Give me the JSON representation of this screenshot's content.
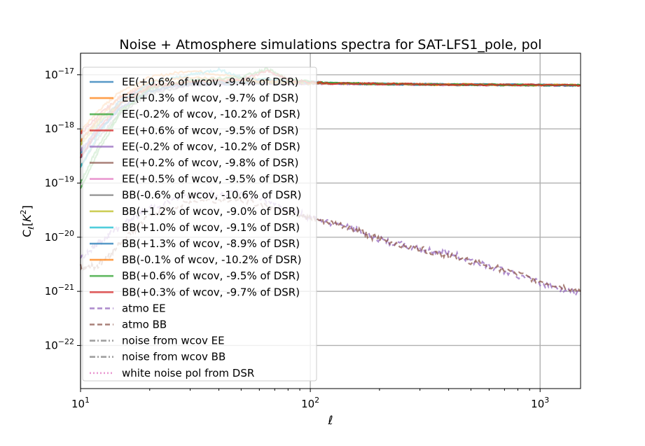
{
  "chart_data": {
    "type": "line",
    "title": "Noise + Atmosphere simulations spectra for SAT-LFS1_pole, pol",
    "xlabel": "ℓ",
    "ylabel": "C_ℓ[K^2]",
    "xscale": "log",
    "yscale": "log",
    "xlim": [
      10,
      1500
    ],
    "ylim": [
      1.6e-23,
      2.5e-17
    ],
    "grid": true,
    "legend_position": "left, inside plot",
    "x_ticks": [
      {
        "value": 10,
        "base": "10",
        "exp": "1"
      },
      {
        "value": 100,
        "base": "10",
        "exp": "2"
      },
      {
        "value": 1000,
        "base": "10",
        "exp": "3"
      }
    ],
    "y_ticks": [
      {
        "value": 1e-22,
        "base": "10",
        "exp": "−22"
      },
      {
        "value": 1e-21,
        "base": "10",
        "exp": "−21"
      },
      {
        "value": 1e-20,
        "base": "10",
        "exp": "−20"
      },
      {
        "value": 1e-19,
        "base": "10",
        "exp": "−19"
      },
      {
        "value": 1e-18,
        "base": "10",
        "exp": "−18"
      },
      {
        "value": 1e-17,
        "base": "10",
        "exp": "−17"
      }
    ],
    "series": [
      {
        "name": "EE(+0.6% of wcov, -9.4% of DSR)",
        "color": "#1f77b4",
        "style": "solid",
        "x": [
          10,
          12,
          15,
          20,
          30,
          50,
          80,
          120,
          200,
          400,
          800,
          1500
        ],
        "y": [
          3.5e-19,
          1.2e-18,
          3.5e-18,
          6e-18,
          6.5e-18,
          7e-18,
          7e-18,
          7e-18,
          6.8e-18,
          6.6e-18,
          6.5e-18,
          6.4e-18
        ]
      },
      {
        "name": "EE(+0.3% of wcov, -9.7% of DSR)",
        "color": "#ff7f0e",
        "style": "solid",
        "x": [
          10,
          12,
          15,
          20,
          30,
          50,
          80,
          120,
          200,
          400,
          800,
          1500
        ],
        "y": [
          9e-19,
          2.2e-18,
          5e-18,
          9e-18,
          1.2e-17,
          9e-18,
          7.5e-18,
          7e-18,
          6.8e-18,
          6.6e-18,
          6.5e-18,
          6.4e-18
        ]
      },
      {
        "name": "EE(-0.2% of wcov, -10.2% of DSR)",
        "color": "#2ca02c",
        "style": "solid",
        "x": [
          10,
          12,
          15,
          20,
          30,
          50,
          80,
          120,
          200,
          400,
          800,
          1500
        ],
        "y": [
          8e-20,
          4e-19,
          2e-18,
          5e-18,
          7.5e-18,
          8e-18,
          8e-18,
          7e-18,
          6.7e-18,
          6.6e-18,
          6.5e-18,
          6.4e-18
        ]
      },
      {
        "name": "EE(+0.6% of wcov, -9.5% of DSR)",
        "color": "#d62728",
        "style": "solid",
        "x": [
          10,
          12,
          15,
          20,
          30,
          50,
          80,
          120,
          200,
          400,
          800,
          1500
        ],
        "y": [
          8e-19,
          1.8e-18,
          4e-18,
          6.5e-18,
          7e-18,
          7.5e-18,
          7e-18,
          6.9e-18,
          6.8e-18,
          6.6e-18,
          6.5e-18,
          6.4e-18
        ]
      },
      {
        "name": "EE(-0.2% of wcov, -10.2% of DSR)",
        "color": "#9467bd",
        "style": "solid",
        "x": [
          10,
          12,
          15,
          20,
          30,
          50,
          80,
          120,
          200,
          400,
          800,
          1500
        ],
        "y": [
          4e-19,
          1e-18,
          2.5e-18,
          5e-18,
          6.5e-18,
          7e-18,
          7e-18,
          7e-18,
          6.8e-18,
          6.6e-18,
          6.5e-18,
          6.4e-18
        ]
      },
      {
        "name": "EE(+0.2% of wcov, -9.8% of DSR)",
        "color": "#8c564b",
        "style": "solid",
        "x": [
          10,
          12,
          15,
          20,
          30,
          50,
          80,
          120,
          200,
          400,
          800,
          1500
        ],
        "y": [
          6e-19,
          1.5e-18,
          3e-18,
          6e-18,
          7e-18,
          7.5e-18,
          7.2e-18,
          7e-18,
          6.8e-18,
          6.6e-18,
          6.5e-18,
          6.4e-18
        ]
      },
      {
        "name": "EE(+0.5% of wcov, -9.5% of DSR)",
        "color": "#e377c2",
        "style": "solid",
        "x": [
          10,
          12,
          15,
          20,
          30,
          50,
          80,
          120,
          200,
          400,
          800,
          1500
        ],
        "y": [
          3e-19,
          9e-19,
          2.5e-18,
          5.5e-18,
          7e-18,
          7.2e-18,
          7e-18,
          6.8e-18,
          6.7e-18,
          6.5e-18,
          6.4e-18,
          6.3e-18
        ]
      },
      {
        "name": "BB(-0.6% of wcov, -10.6% of DSR)",
        "color": "#7f7f7f",
        "style": "solid",
        "x": [
          10,
          12,
          15,
          20,
          30,
          50,
          80,
          120,
          200,
          400,
          800,
          1500
        ],
        "y": [
          2e-19,
          7e-19,
          2e-18,
          4.5e-18,
          6.5e-18,
          7e-18,
          7e-18,
          6.8e-18,
          6.7e-18,
          6.5e-18,
          6.4e-18,
          6.3e-18
        ]
      },
      {
        "name": "BB(+1.2% of wcov, -9.0% of DSR)",
        "color": "#bcbd22",
        "style": "solid",
        "x": [
          10,
          12,
          15,
          20,
          30,
          50,
          80,
          120,
          200,
          400,
          800,
          1500
        ],
        "y": [
          5e-19,
          1.3e-18,
          3e-18,
          6e-18,
          7.5e-18,
          7.5e-18,
          7.2e-18,
          7e-18,
          6.8e-18,
          6.6e-18,
          6.5e-18,
          6.4e-18
        ]
      },
      {
        "name": "BB(+1.0% of wcov, -9.1% of DSR)",
        "color": "#17becf",
        "style": "solid",
        "x": [
          10,
          12,
          15,
          20,
          30,
          40,
          50,
          80,
          120,
          200,
          400,
          800,
          1500
        ],
        "y": [
          2e-19,
          8e-19,
          3e-18,
          7e-18,
          1e-17,
          1.25e-17,
          9e-18,
          7.5e-18,
          7e-18,
          6.8e-18,
          6.6e-18,
          6.5e-18,
          6.4e-18
        ]
      },
      {
        "name": "BB(+1.3% of wcov, -8.9% of DSR)",
        "color": "#1f77b4",
        "style": "solid",
        "x": [
          10,
          12,
          15,
          20,
          30,
          50,
          80,
          120,
          200,
          400,
          800,
          1500
        ],
        "y": [
          3e-19,
          9e-19,
          2.5e-18,
          5e-18,
          7e-18,
          7.5e-18,
          8e-18,
          7e-18,
          6.8e-18,
          6.6e-18,
          6.5e-18,
          6.4e-18
        ]
      },
      {
        "name": "BB(-0.1% of wcov, -10.2% of DSR)",
        "color": "#ff7f0e",
        "style": "solid",
        "x": [
          10,
          12,
          15,
          20,
          30,
          50,
          80,
          120,
          200,
          400,
          800,
          1500
        ],
        "y": [
          6e-19,
          1.6e-18,
          4e-18,
          7.5e-18,
          9e-18,
          8e-18,
          7.5e-18,
          7e-18,
          6.8e-18,
          6.6e-18,
          6.5e-18,
          6.4e-18
        ]
      },
      {
        "name": "BB(+0.6% of wcov, -9.5% of DSR)",
        "color": "#2ca02c",
        "style": "solid",
        "x": [
          10,
          12,
          15,
          20,
          30,
          50,
          65,
          80,
          120,
          200,
          400,
          800,
          1500
        ],
        "y": [
          1e-19,
          5e-19,
          2.2e-18,
          5.5e-18,
          8e-18,
          9e-18,
          1.3e-17,
          8e-18,
          7e-18,
          6.8e-18,
          6.6e-18,
          6.5e-18,
          6.4e-18
        ]
      },
      {
        "name": "BB(+0.3% of wcov, -9.7% of DSR)",
        "color": "#d62728",
        "style": "solid",
        "x": [
          10,
          12,
          15,
          20,
          30,
          50,
          65,
          80,
          120,
          200,
          400,
          800,
          1500
        ],
        "y": [
          3e-19,
          1e-18,
          3e-18,
          6e-18,
          7.5e-18,
          8e-18,
          1.2e-17,
          8e-18,
          7e-18,
          6.8e-18,
          6.6e-18,
          6.5e-18,
          6.4e-18
        ]
      },
      {
        "name": "atmo EE",
        "color": "#9467bd",
        "style": "dashed",
        "x": [
          10,
          12,
          15,
          20,
          30,
          50,
          80,
          100,
          150,
          200,
          300,
          400,
          600,
          1000,
          1500
        ],
        "y": [
          4e-21,
          8e-21,
          1.6e-20,
          3.5e-20,
          6e-20,
          6.5e-20,
          3.5e-20,
          2.3e-20,
          1.5e-20,
          9e-21,
          6e-21,
          5e-21,
          3e-21,
          1.4e-21,
          9e-22
        ]
      },
      {
        "name": "atmo BB",
        "color": "#8c564b",
        "style": "dashed",
        "x": [
          10,
          12,
          15,
          20,
          30,
          50,
          80,
          100,
          150,
          200,
          300,
          400,
          600,
          1000,
          1500
        ],
        "y": [
          2.8e-21,
          3e-21,
          8e-21,
          2.5e-20,
          4.5e-20,
          5e-20,
          3e-20,
          2.2e-20,
          1.5e-20,
          9e-21,
          6e-21,
          4.5e-21,
          3e-21,
          1.5e-21,
          1e-21
        ]
      },
      {
        "name": "noise from wcov EE",
        "color": "#7f7f7f",
        "style": "dashdot",
        "x": [],
        "y": []
      },
      {
        "name": "noise from wcov BB",
        "color": "#7f7f7f",
        "style": "dashdot",
        "x": [],
        "y": []
      },
      {
        "name": "white noise pol from DSR",
        "color": "#e377c2",
        "style": "dotted",
        "x": [],
        "y": []
      }
    ]
  }
}
